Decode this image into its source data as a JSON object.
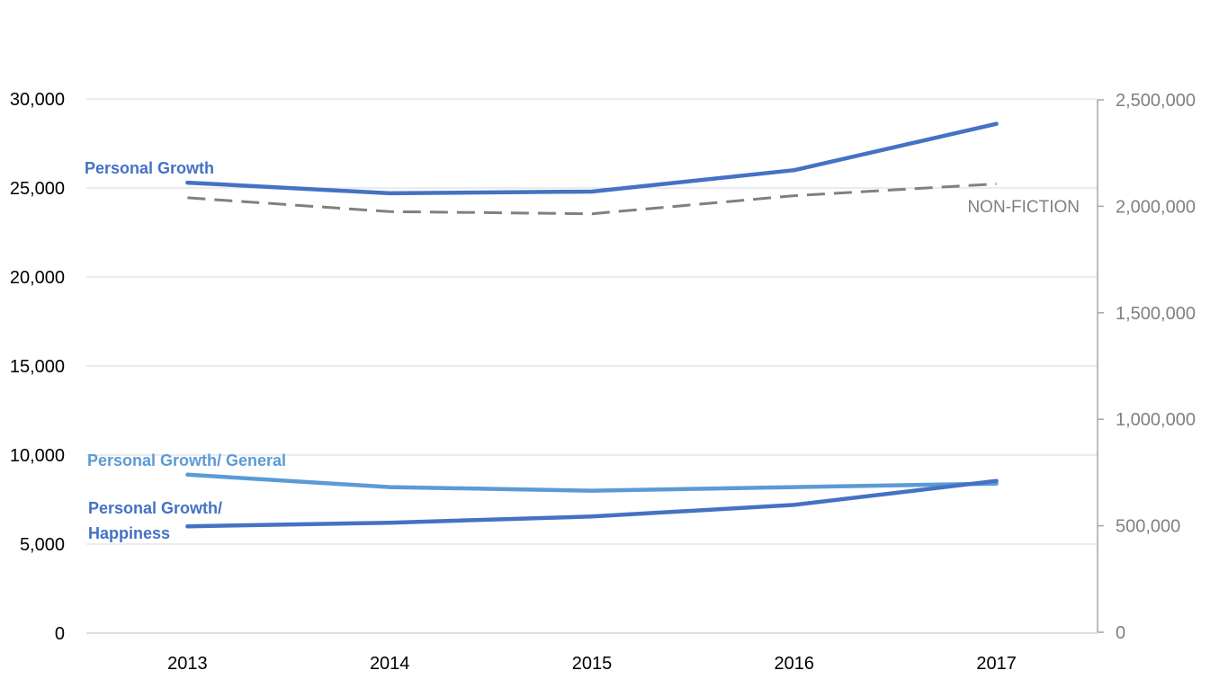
{
  "chart_data": {
    "type": "line",
    "categories": [
      "2013",
      "2014",
      "2015",
      "2016",
      "2017"
    ],
    "left_axis": {
      "ylim": [
        0,
        30000
      ],
      "ticks": [
        0,
        5000,
        10000,
        15000,
        20000,
        25000,
        30000
      ],
      "tick_labels": [
        "0",
        "5,000",
        "10,000",
        "15,000",
        "20,000",
        "25,000",
        "30,000"
      ]
    },
    "right_axis": {
      "ylim": [
        0,
        2500000
      ],
      "ticks": [
        0,
        500000,
        1000000,
        1500000,
        2000000,
        2500000
      ],
      "tick_labels": [
        "0",
        "500,000",
        "1,000,000",
        "1,500,000",
        "2,000,000",
        "2,500,000"
      ]
    },
    "grid": true,
    "legend": "none",
    "series": [
      {
        "name": "Personal Growth",
        "axis": "left",
        "values": [
          25300,
          24700,
          24800,
          26000,
          28600
        ],
        "color": "#4472c4",
        "dashed": false,
        "label_lines": [
          "Personal Growth"
        ]
      },
      {
        "name": "Personal Growth/ General",
        "axis": "left",
        "values": [
          8900,
          8200,
          8000,
          8200,
          8400
        ],
        "color": "#5b9bd5",
        "dashed": false,
        "label_lines": [
          "Personal Growth/ General"
        ]
      },
      {
        "name": "Personal Growth/ Happiness",
        "axis": "left",
        "values": [
          6000,
          6200,
          6550,
          7200,
          8550
        ],
        "color": "#4472c4",
        "dashed": false,
        "label_lines": [
          "Personal Growth/",
          "Happiness"
        ]
      },
      {
        "name": "NON-FICTION",
        "axis": "right",
        "values": [
          2040000,
          1975000,
          1965000,
          2050000,
          2105000
        ],
        "color": "#808080",
        "dashed": true,
        "label_lines": [
          "NON-FICTION"
        ]
      }
    ]
  }
}
